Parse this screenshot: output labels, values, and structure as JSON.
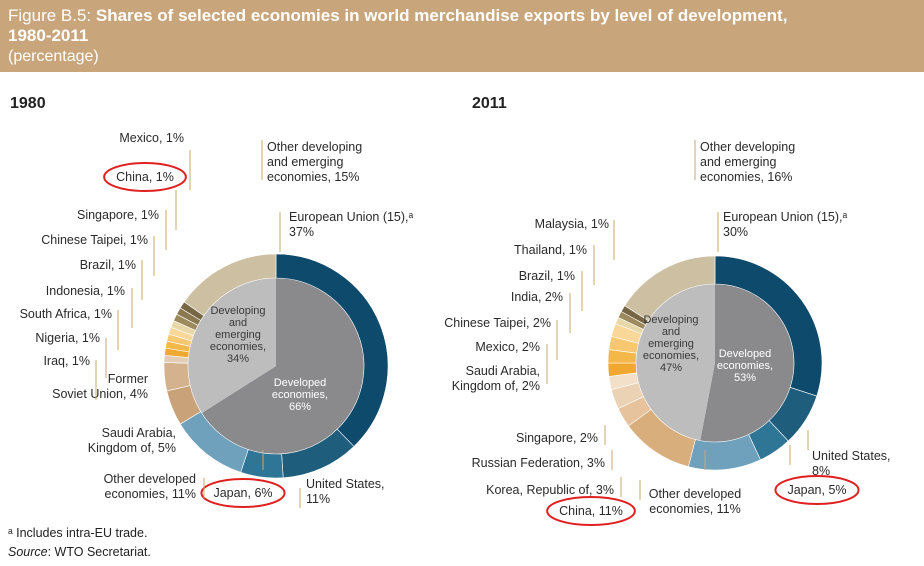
{
  "header": {
    "figure_label": "Figure B.5: ",
    "title_line1": "Shares of selected economies in world merchandise exports by level of development,",
    "title_line2": "1980-2011",
    "subtitle": "(percentage)"
  },
  "colors": {
    "header_bg": "#c8a57a",
    "eu": "#0e4a6b",
    "us": "#2f6f8f",
    "japan": "#3d7f9c",
    "other_developed": "#6fa1bd",
    "developed_core": "#8a8a8c",
    "developing_core": "#bdbdbe",
    "highlight_ring": "#e02020"
  },
  "chart_data": [
    {
      "type": "pie",
      "year": "1980",
      "inner": [
        {
          "name": "Developing and emerging economies",
          "value": 34,
          "label": "Developing\nand\nemerging\neconomies,\n34%"
        },
        {
          "name": "Developed economies",
          "value": 66,
          "label": "Developed\neconomies,\n66%"
        }
      ],
      "slices": [
        {
          "label": "European Union (15),ᵃ\n37%",
          "value": 37,
          "color": "#0e4a6b"
        },
        {
          "label": "United States,\n11%",
          "value": 11,
          "color": "#1f5d7c"
        },
        {
          "label": "Japan, 6%",
          "value": 6,
          "color": "#2f7595",
          "highlight": true
        },
        {
          "label": "Other developed\neconomies, 11%",
          "value": 11,
          "color": "#6fa1bd"
        },
        {
          "label": "Saudi Arabia,\nKingdom of, 5%",
          "value": 5,
          "color": "#c9a279"
        },
        {
          "label": "Former\nSoviet Union, 4%",
          "value": 4,
          "color": "#d4b28d"
        },
        {
          "label": "Iraq, 1%",
          "value": 1,
          "color": "#e2cdb4"
        },
        {
          "label": "Nigeria, 1%",
          "value": 1,
          "color": "#f0a830"
        },
        {
          "label": "South Africa, 1%",
          "value": 1,
          "color": "#f4b84a"
        },
        {
          "label": "Indonesia, 1%",
          "value": 1,
          "color": "#f7c870"
        },
        {
          "label": "Brazil, 1%",
          "value": 1,
          "color": "#f9d798"
        },
        {
          "label": "Chinese Taipei, 1%",
          "value": 1,
          "color": "#e8d7a8"
        },
        {
          "label": "Singapore, 1%",
          "value": 1,
          "color": "#9c8a5c"
        },
        {
          "label": "China, 1%",
          "value": 1,
          "color": "#8a7850",
          "highlight": true
        },
        {
          "label": "Mexico, 1%",
          "value": 1,
          "color": "#776644"
        },
        {
          "label": "Other developing\nand emerging\neconomies, 15%",
          "value": 15,
          "color": "#cdbfa2"
        }
      ]
    },
    {
      "type": "pie",
      "year": "2011",
      "inner": [
        {
          "name": "Developing and emerging economies",
          "value": 47,
          "label": "Developing\nand\nemerging\neconomies,\n47%"
        },
        {
          "name": "Developed economies",
          "value": 53,
          "label": "Developed\neconomies,\n53%"
        }
      ],
      "slices": [
        {
          "label": "European Union (15),ᵃ\n30%",
          "value": 30,
          "color": "#0e4a6b"
        },
        {
          "label": "United States,\n8%",
          "value": 8,
          "color": "#1f5d7c"
        },
        {
          "label": "Japan, 5%",
          "value": 5,
          "color": "#2f7595",
          "highlight": true
        },
        {
          "label": "Other developed\neconomies, 11%",
          "value": 11,
          "color": "#6fa1bd"
        },
        {
          "label": "China, 11%",
          "value": 11,
          "color": "#d9ae7d",
          "highlight": true
        },
        {
          "label": "Korea, Republic of, 3%",
          "value": 3,
          "color": "#e6c39c"
        },
        {
          "label": "Russian Federation, 3%",
          "value": 3,
          "color": "#ecd2b4"
        },
        {
          "label": "Singapore, 2%",
          "value": 2,
          "color": "#f2e0c8"
        },
        {
          "label": "Saudi Arabia,\nKingdom of, 2%",
          "value": 2,
          "color": "#f0a830"
        },
        {
          "label": "Mexico, 2%",
          "value": 2,
          "color": "#f4b84a"
        },
        {
          "label": "Chinese Taipei, 2%",
          "value": 2,
          "color": "#f7c870"
        },
        {
          "label": "India, 2%",
          "value": 2,
          "color": "#f9d798"
        },
        {
          "label": "Brazil, 1%",
          "value": 1,
          "color": "#e8d7a8"
        },
        {
          "label": "Thailand, 1%",
          "value": 1,
          "color": "#9c8a5c"
        },
        {
          "label": "Malaysia, 1%",
          "value": 1,
          "color": "#776644"
        },
        {
          "label": "Other developing\nand emerging\neconomies, 16%",
          "value": 16,
          "color": "#cdbfa2"
        }
      ]
    }
  ],
  "footnote": {
    "note": "ᵃ Includes intra-EU trade.",
    "source_label": "Source",
    "source_text": ": WTO Secretariat."
  }
}
